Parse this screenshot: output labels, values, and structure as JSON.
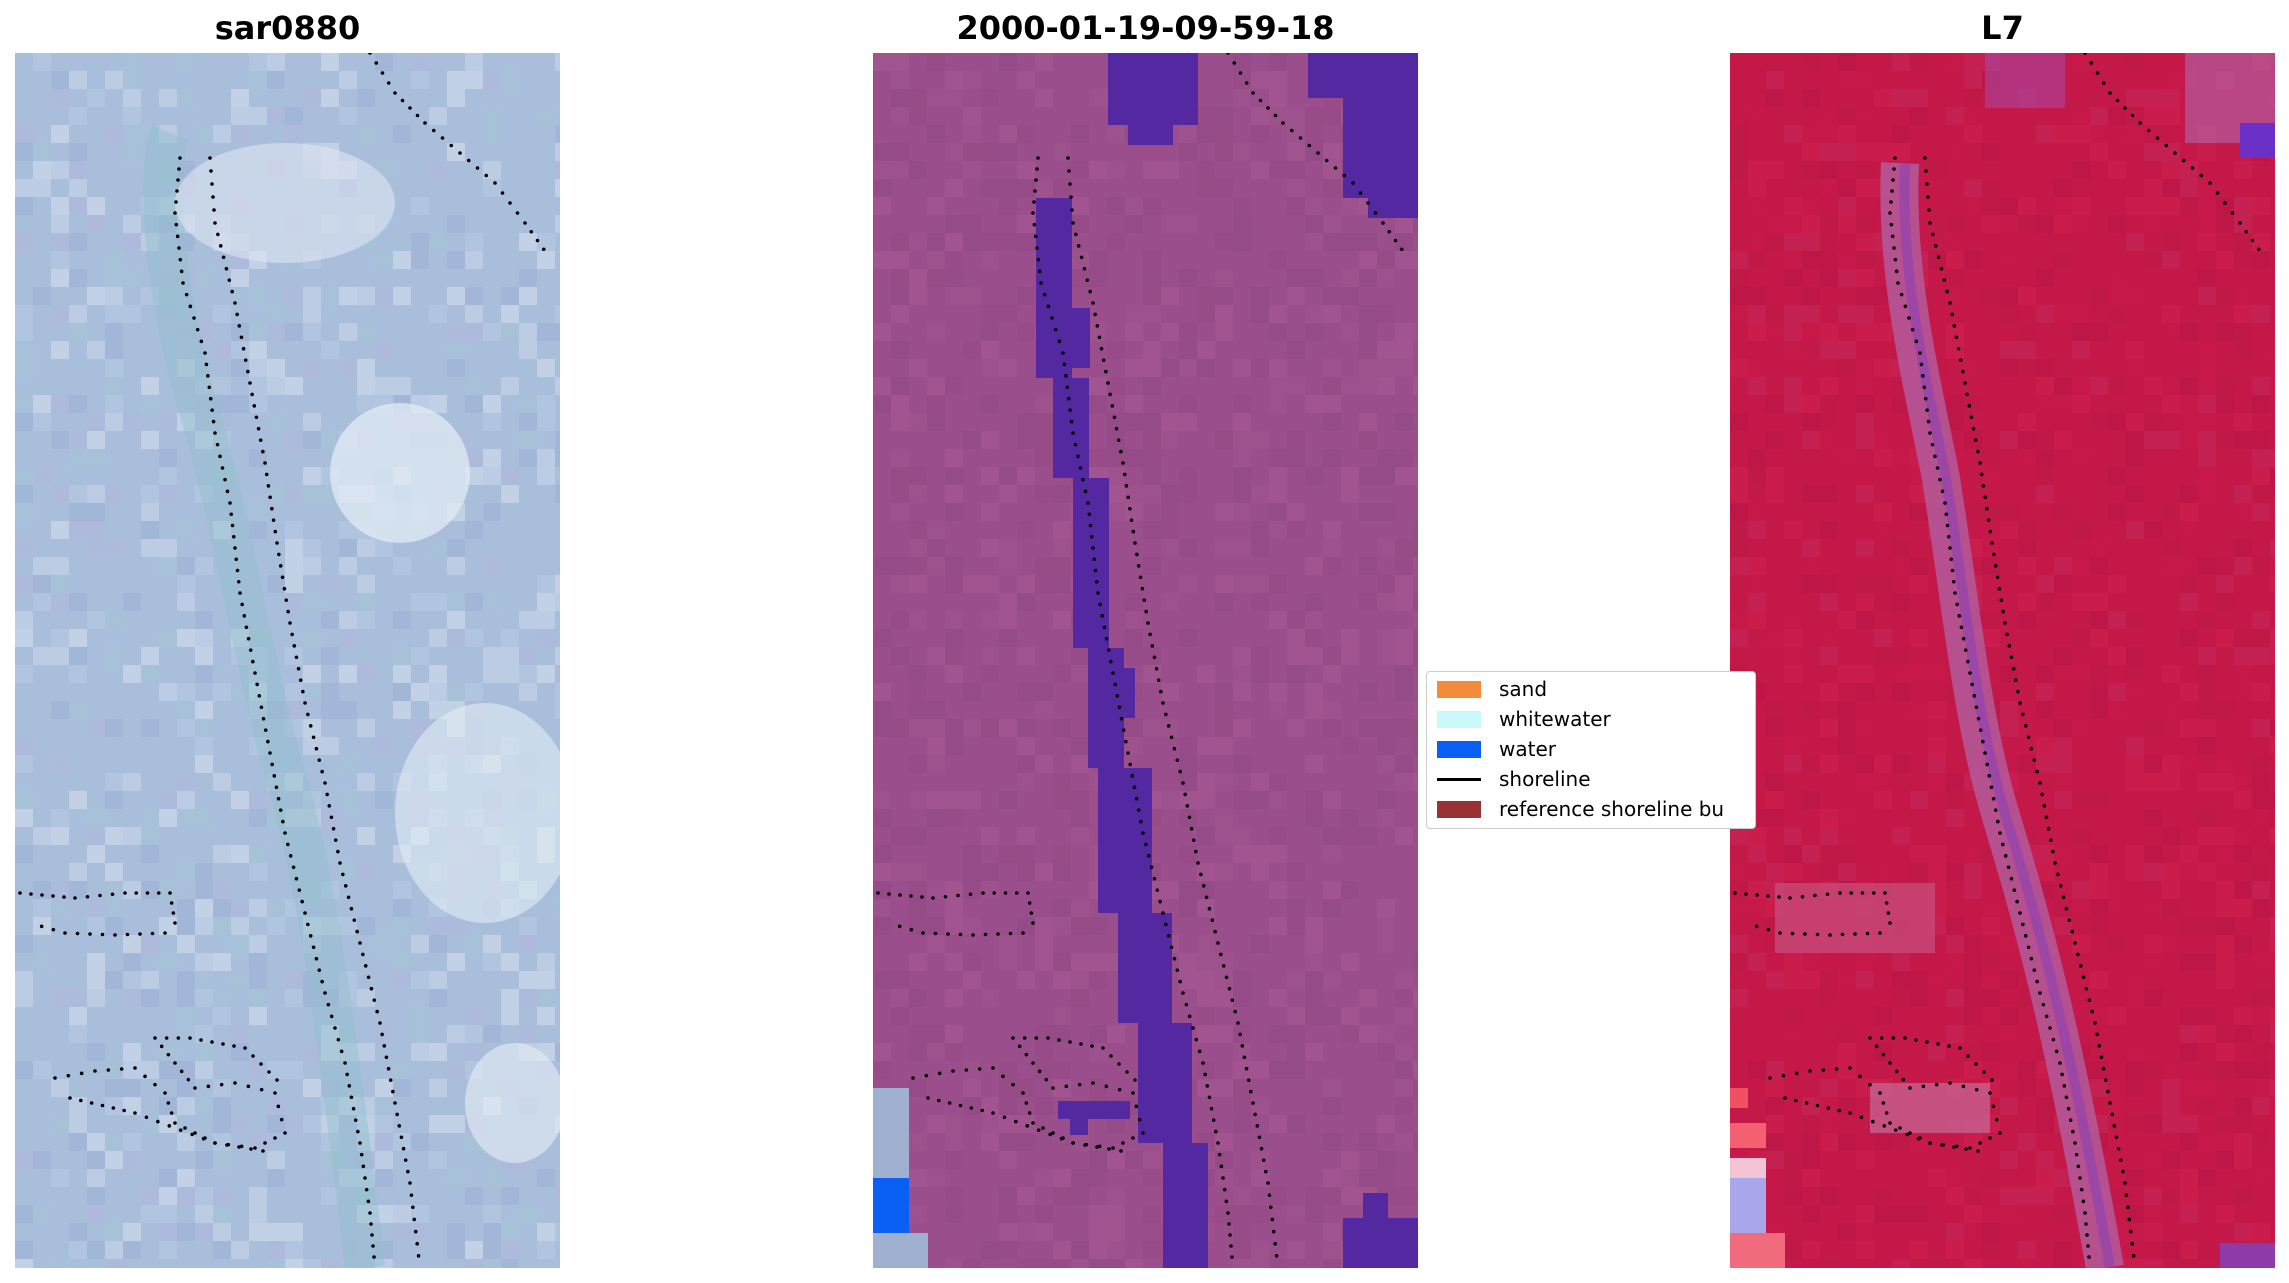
{
  "titles": {
    "left": "sar0880",
    "middle": "2000-01-19-09-59-18",
    "right": "L7"
  },
  "legend": {
    "items": [
      {
        "label": "sand",
        "kind": "patch",
        "color": "#f28c3b"
      },
      {
        "label": "whitewater",
        "kind": "patch",
        "color": "#c8fafa"
      },
      {
        "label": "water",
        "kind": "patch",
        "color": "#0a5ff5"
      },
      {
        "label": "shoreline",
        "kind": "line",
        "color": "#000000"
      },
      {
        "label": "reference shoreline bu",
        "kind": "patch",
        "color": "#993333"
      }
    ]
  },
  "colors": {
    "rgb_base": "#a7bcd8",
    "rgb_bright": "#dde6f0",
    "classified_base": "#9a4e8b",
    "classified_water": "#5428a0",
    "classified_bright_water": "#0a5ff5",
    "index_base": "#c41848",
    "index_channel": "#b45a9c",
    "index_blue": "#6a30c8"
  }
}
